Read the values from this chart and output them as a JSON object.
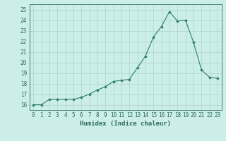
{
  "x": [
    0,
    1,
    2,
    3,
    4,
    5,
    6,
    7,
    8,
    9,
    10,
    11,
    12,
    13,
    14,
    15,
    16,
    17,
    18,
    19,
    20,
    21,
    22,
    23
  ],
  "y": [
    16.0,
    16.0,
    16.5,
    16.5,
    16.5,
    16.5,
    16.7,
    17.0,
    17.4,
    17.7,
    18.2,
    18.3,
    18.4,
    19.5,
    20.6,
    22.4,
    23.4,
    24.8,
    23.9,
    24.0,
    21.9,
    19.3,
    18.6,
    18.5
  ],
  "xlabel": "Humidex (Indice chaleur)",
  "xlim": [
    -0.5,
    23.5
  ],
  "ylim": [
    15.5,
    25.5
  ],
  "yticks": [
    16,
    17,
    18,
    19,
    20,
    21,
    22,
    23,
    24,
    25
  ],
  "xticks": [
    0,
    1,
    2,
    3,
    4,
    5,
    6,
    7,
    8,
    9,
    10,
    11,
    12,
    13,
    14,
    15,
    16,
    17,
    18,
    19,
    20,
    21,
    22,
    23
  ],
  "line_color": "#2e7d6e",
  "marker_color": "#2e7d6e",
  "bg_color": "#cceee8",
  "grid_color": "#aad4cc",
  "tick_label_color": "#2e6b5e",
  "xlabel_color": "#2e6b5e",
  "font_size": 5.5,
  "xlabel_font_size": 6.5
}
